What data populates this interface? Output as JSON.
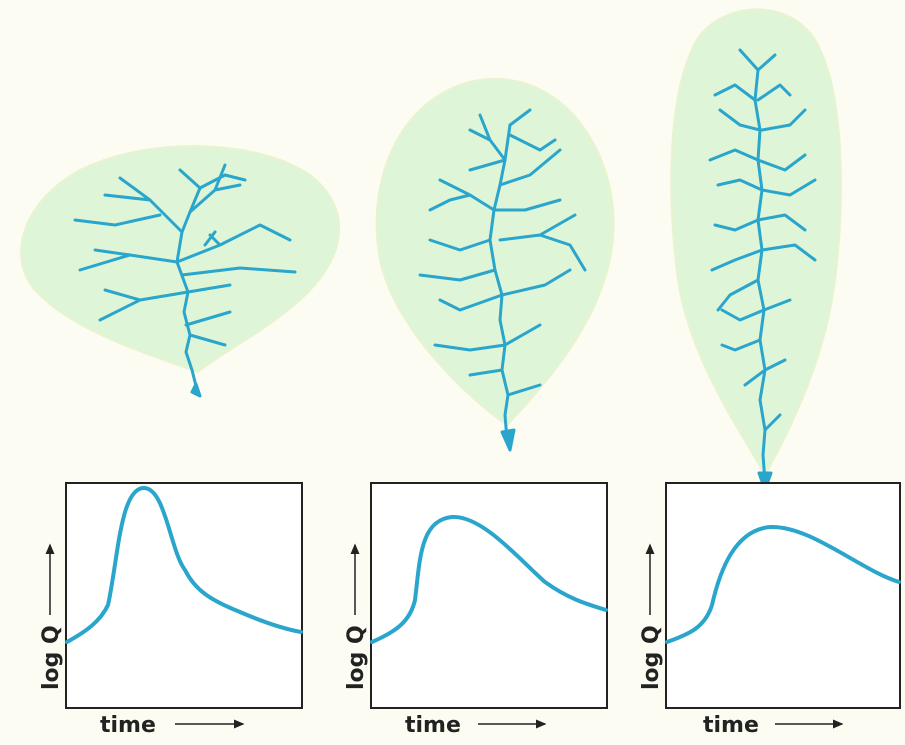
{
  "panels": [
    {
      "y_label": "log Q",
      "x_label": "time"
    },
    {
      "y_label": "log Q",
      "x_label": "time"
    },
    {
      "y_label": "log Q",
      "x_label": "time"
    }
  ]
}
